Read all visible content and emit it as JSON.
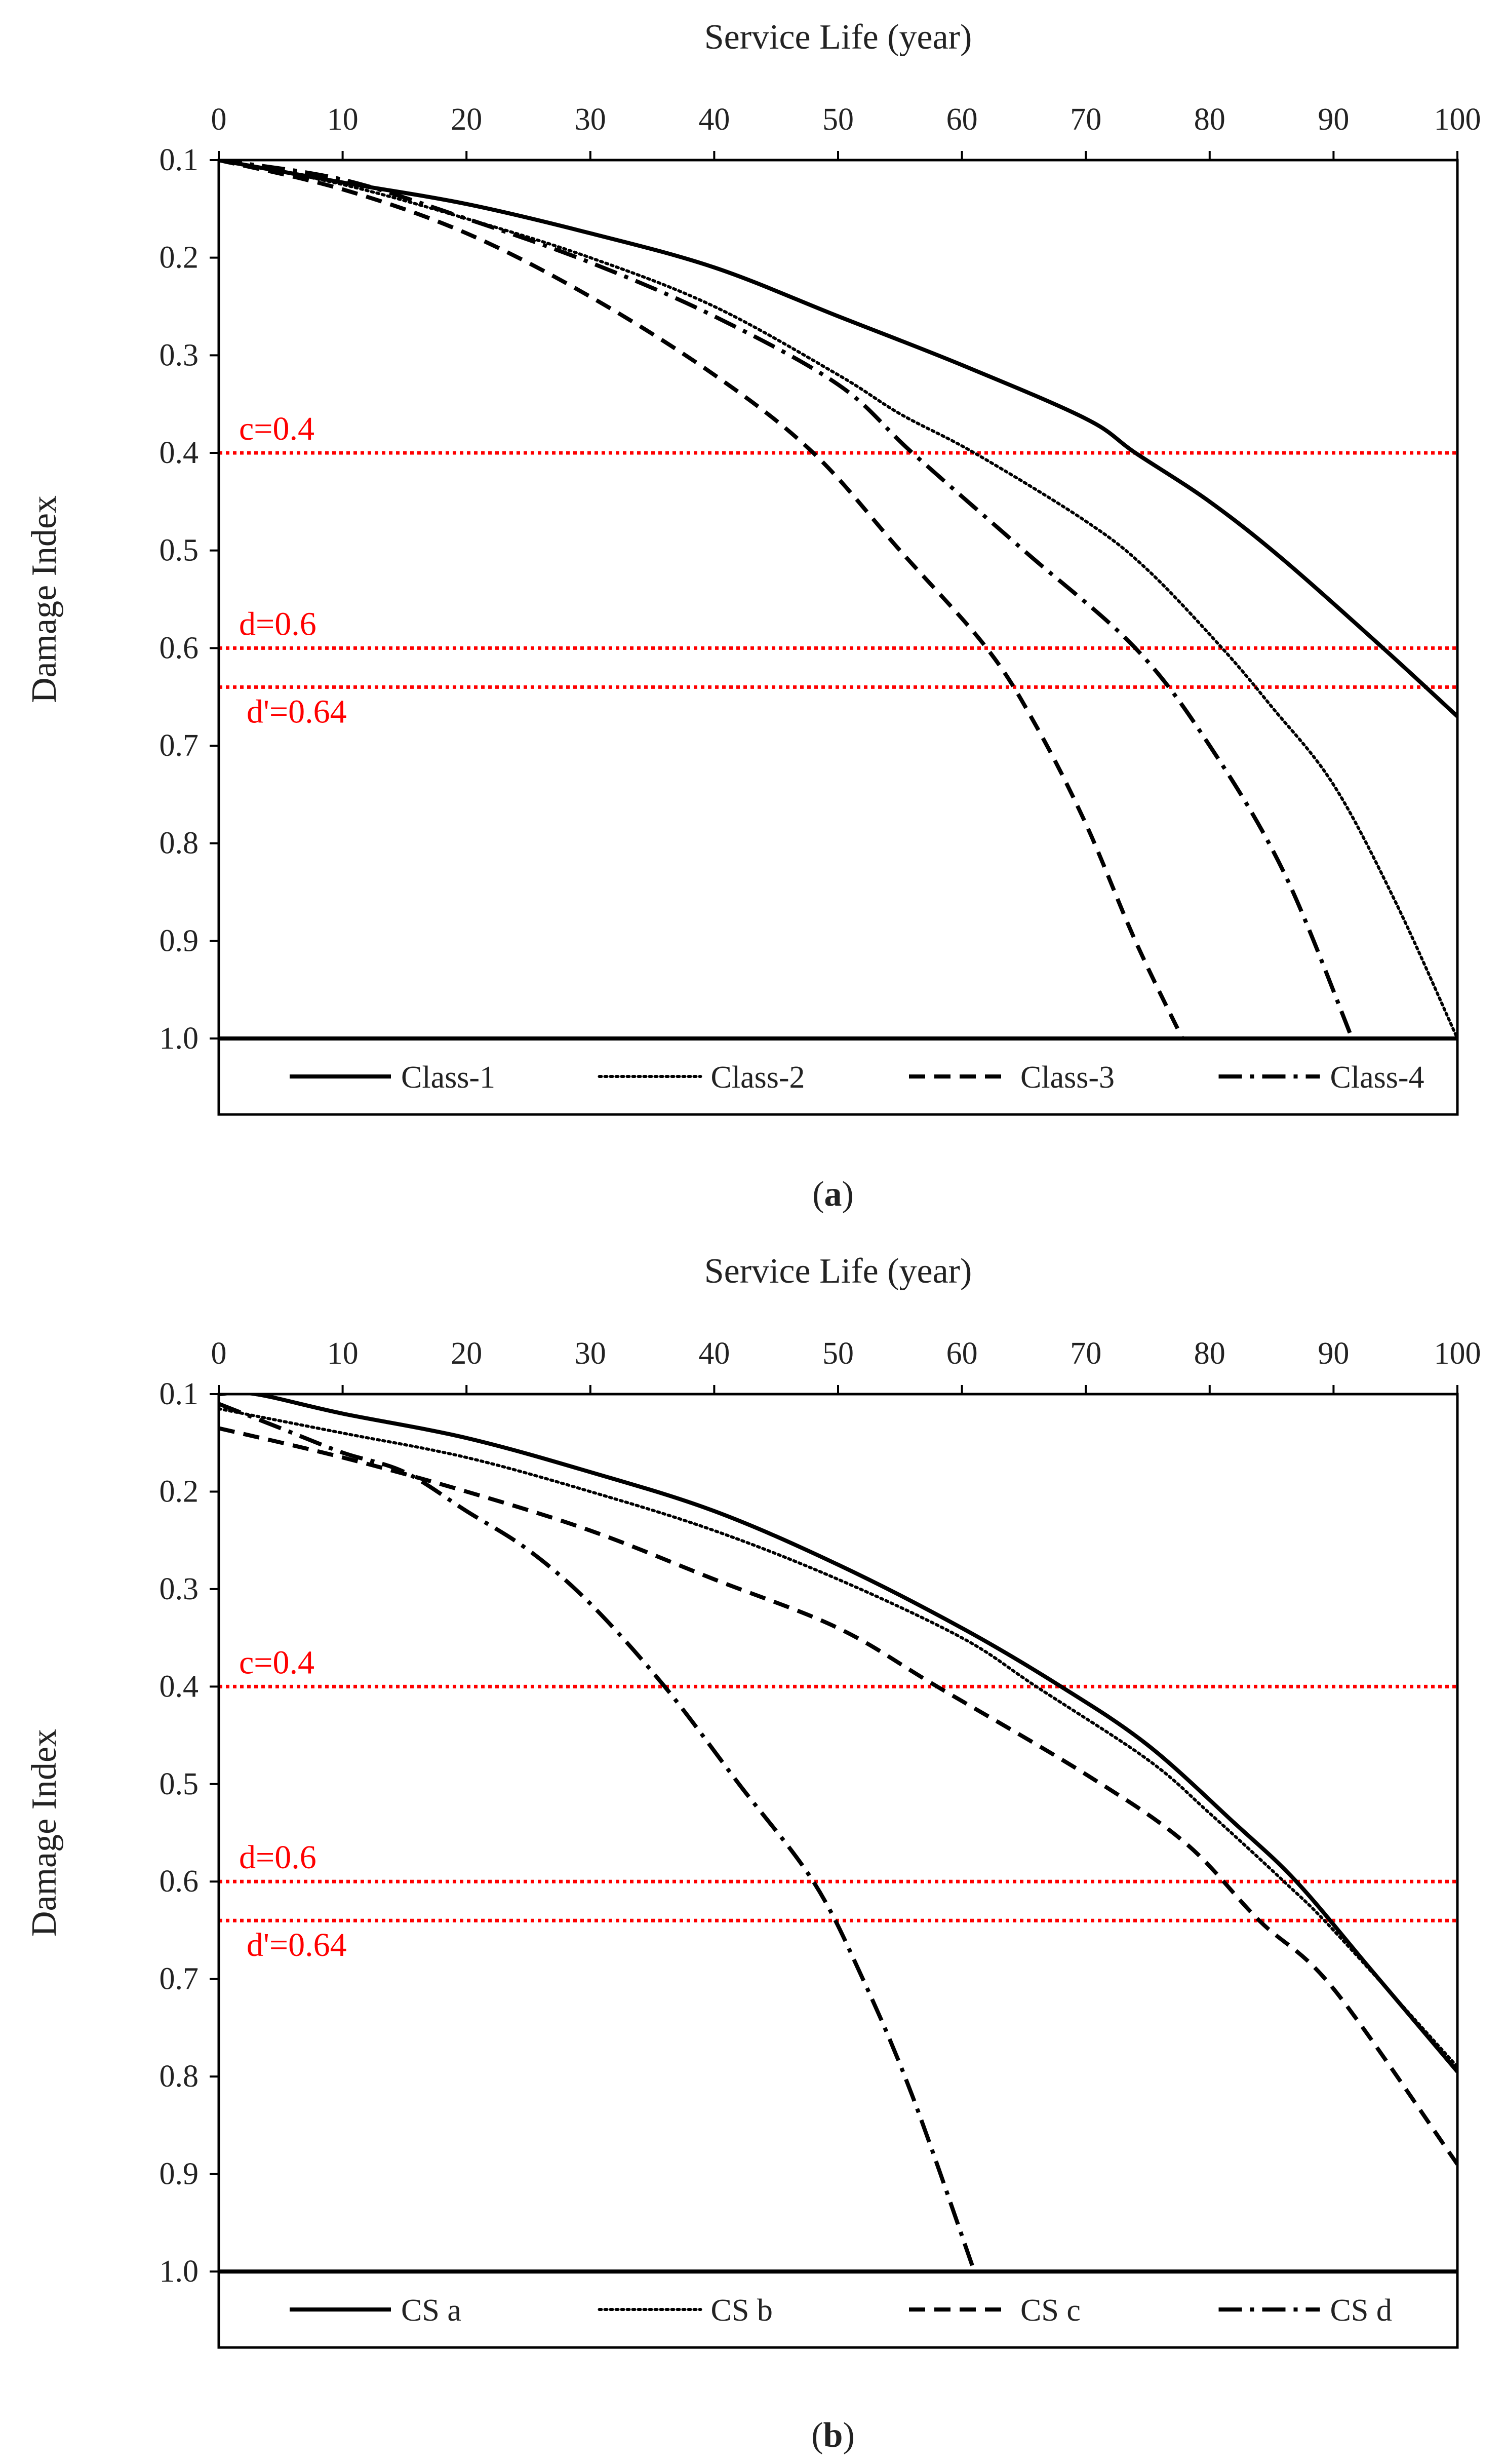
{
  "panels_meta": {
    "labels": [
      "(a)",
      "(b)"
    ],
    "letters": [
      "a",
      "b"
    ]
  },
  "chart_data": [
    {
      "type": "line",
      "panel_label": "(a)",
      "title": "",
      "xlabel": "Service Life (year)",
      "ylabel": "Damage Index",
      "xlim": [
        0,
        100
      ],
      "ylim": [
        0.1,
        1.0
      ],
      "y_inverted": true,
      "x_axis_position": "top",
      "x_ticks": [
        0,
        10,
        20,
        30,
        40,
        50,
        60,
        70,
        80,
        90,
        100
      ],
      "x_tick_labels": [
        "0",
        "10",
        "20",
        "30",
        "40",
        "50",
        "60",
        "70",
        "80",
        "90",
        "100"
      ],
      "y_ticks": [
        0.1,
        0.2,
        0.3,
        0.4,
        0.5,
        0.6,
        0.7,
        0.8,
        0.9,
        1.0
      ],
      "y_tick_labels": [
        "0.1",
        "0.2",
        "0.3",
        "0.4",
        "0.5",
        "0.6",
        "0.7",
        "0.8",
        "0.9",
        "1.0"
      ],
      "grid": false,
      "legend_position": "bottom",
      "thresholds": [
        {
          "label": "c=0.4",
          "value": 0.4,
          "color": "#ff0000"
        },
        {
          "label": "d=0.6",
          "value": 0.6,
          "color": "#ff0000"
        },
        {
          "label": "d'=0.64",
          "value": 0.64,
          "color": "#ff0000"
        }
      ],
      "series": [
        {
          "name": "Class-1",
          "style": "solid",
          "color": "#000000",
          "x": [
            0,
            10,
            20,
            30,
            40,
            50,
            60,
            70,
            74,
            80,
            86,
            94,
            100
          ],
          "y": [
            0.1,
            0.123,
            0.145,
            0.175,
            0.21,
            0.26,
            0.31,
            0.365,
            0.4,
            0.45,
            0.51,
            0.6,
            0.67
          ]
        },
        {
          "name": "Class-2",
          "style": "dotted",
          "color": "#000000",
          "x": [
            0,
            10,
            20,
            30,
            40,
            50,
            55,
            61,
            70,
            75,
            81,
            85,
            90,
            95,
            100
          ],
          "y": [
            0.1,
            0.125,
            0.16,
            0.2,
            0.25,
            0.32,
            0.36,
            0.4,
            0.47,
            0.52,
            0.6,
            0.66,
            0.74,
            0.86,
            1.0
          ]
        },
        {
          "name": "Class-3",
          "style": "dashed",
          "color": "#000000",
          "x": [
            0,
            10,
            20,
            30,
            40,
            48,
            55,
            62,
            66,
            70,
            74,
            77.8
          ],
          "y": [
            0.1,
            0.13,
            0.175,
            0.24,
            0.32,
            0.4,
            0.5,
            0.6,
            0.68,
            0.78,
            0.9,
            1.0
          ]
        },
        {
          "name": "Class-4",
          "style": "dashdot",
          "color": "#000000",
          "x": [
            0,
            10,
            20,
            30,
            40,
            50,
            56,
            65,
            74,
            80,
            86,
            91.5
          ],
          "y": [
            0.1,
            0.12,
            0.16,
            0.205,
            0.26,
            0.33,
            0.4,
            0.5,
            0.6,
            0.7,
            0.83,
            1.0
          ]
        }
      ]
    },
    {
      "type": "line",
      "panel_label": "(b)",
      "title": "",
      "xlabel": "Service Life (year)",
      "ylabel": "Damage Index",
      "xlim": [
        0,
        100
      ],
      "ylim": [
        0.1,
        1.0
      ],
      "y_inverted": true,
      "x_axis_position": "top",
      "x_ticks": [
        0,
        10,
        20,
        30,
        40,
        50,
        60,
        70,
        80,
        90,
        100
      ],
      "x_tick_labels": [
        "0",
        "10",
        "20",
        "30",
        "40",
        "50",
        "60",
        "70",
        "80",
        "90",
        "100"
      ],
      "y_ticks": [
        0.1,
        0.2,
        0.3,
        0.4,
        0.5,
        0.6,
        0.7,
        0.8,
        0.9,
        1.0
      ],
      "y_tick_labels": [
        "0.1",
        "0.2",
        "0.3",
        "0.4",
        "0.5",
        "0.6",
        "0.7",
        "0.8",
        "0.9",
        "1.0"
      ],
      "grid": false,
      "legend_position": "bottom",
      "thresholds": [
        {
          "label": "c=0.4",
          "value": 0.4,
          "color": "#ff0000"
        },
        {
          "label": "d=0.6",
          "value": 0.6,
          "color": "#ff0000"
        },
        {
          "label": "d'=0.64",
          "value": 0.64,
          "color": "#ff0000"
        }
      ],
      "series": [
        {
          "name": "CS a",
          "style": "solid",
          "color": "#000000",
          "x": [
            0,
            3,
            10,
            20,
            30,
            40,
            50,
            60,
            68,
            75,
            82,
            87,
            93,
            100
          ],
          "y": [
            0.1,
            0.1,
            0.12,
            0.145,
            0.18,
            0.22,
            0.275,
            0.34,
            0.4,
            0.46,
            0.54,
            0.6,
            0.69,
            0.795
          ]
        },
        {
          "name": "CS b",
          "style": "dotted",
          "color": "#000000",
          "x": [
            0,
            10,
            20,
            30,
            40,
            50,
            60,
            66,
            75,
            80,
            86,
            90,
            100
          ],
          "y": [
            0.115,
            0.14,
            0.165,
            0.2,
            0.24,
            0.29,
            0.35,
            0.4,
            0.475,
            0.53,
            0.6,
            0.65,
            0.79
          ]
        },
        {
          "name": "CS c",
          "style": "dashed",
          "color": "#000000",
          "x": [
            0,
            10,
            20,
            30,
            40,
            50,
            58,
            70,
            78,
            84,
            90,
            100
          ],
          "y": [
            0.135,
            0.165,
            0.2,
            0.24,
            0.29,
            0.34,
            0.4,
            0.49,
            0.56,
            0.64,
            0.71,
            0.89
          ]
        },
        {
          "name": "CS d",
          "style": "dashdot",
          "color": "#000000",
          "x": [
            0,
            5,
            10,
            15,
            20,
            25,
            30,
            36,
            42,
            48,
            52,
            56,
            61
          ],
          "y": [
            0.11,
            0.135,
            0.16,
            0.18,
            0.22,
            0.26,
            0.315,
            0.4,
            0.5,
            0.6,
            0.7,
            0.82,
            1.0
          ]
        }
      ]
    }
  ]
}
